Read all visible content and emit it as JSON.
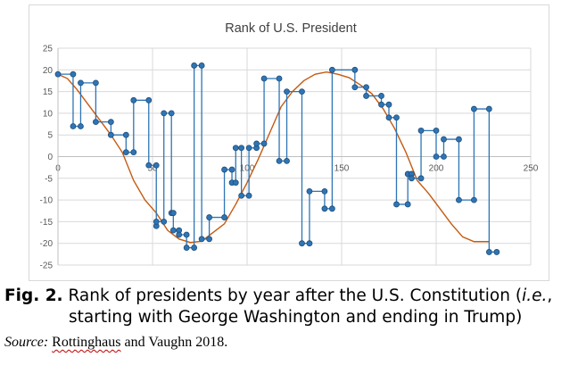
{
  "chart_data": {
    "type": "line",
    "title": "Rank of U.S. President",
    "xlabel": "",
    "ylabel": "",
    "xlim": [
      0,
      250
    ],
    "ylim": [
      -25,
      25
    ],
    "x_ticks": [
      0,
      50,
      100,
      150,
      200,
      250
    ],
    "y_ticks": [
      25,
      20,
      15,
      10,
      5,
      0,
      -5,
      -10,
      -15,
      -20,
      -25
    ],
    "grid": true,
    "colors": {
      "rank_series": "#2e75b6",
      "marker_fill": "#2e75b6",
      "marker_edge": "#1f4e79",
      "trend": "#c55a11",
      "grid": "#d9d9d9",
      "axis": "#bfbfbf"
    },
    "series": [
      {
        "values": [
          [
            0,
            19
          ],
          [
            8,
            19
          ],
          [
            8,
            7
          ],
          [
            12,
            7
          ],
          [
            12,
            17
          ],
          [
            20,
            17
          ],
          [
            20,
            8
          ],
          [
            28,
            8
          ],
          [
            28,
            5
          ],
          [
            36,
            5
          ],
          [
            36,
            1
          ],
          [
            40,
            1
          ],
          [
            40,
            13
          ],
          [
            48,
            13
          ],
          [
            48,
            -2
          ],
          [
            52,
            -2
          ],
          [
            52,
            -16
          ],
          [
            52,
            -15
          ],
          [
            56,
            -15
          ],
          [
            56,
            10
          ],
          [
            60,
            10
          ],
          [
            60,
            -13
          ],
          [
            61,
            -13
          ],
          [
            61,
            -17
          ],
          [
            64,
            -17
          ],
          [
            64,
            -18
          ],
          [
            68,
            -18
          ],
          [
            68,
            -21
          ],
          [
            72,
            -21
          ],
          [
            72,
            21
          ],
          [
            76,
            21
          ],
          [
            76,
            -19
          ],
          [
            80,
            -19
          ],
          [
            80,
            -14
          ],
          [
            88,
            -14
          ],
          [
            88,
            -3
          ],
          [
            92,
            -3
          ],
          [
            92,
            -6
          ],
          [
            94,
            -6
          ],
          [
            94,
            2
          ],
          [
            97,
            2
          ],
          [
            97,
            -9
          ],
          [
            101,
            -9
          ],
          [
            101,
            2
          ],
          [
            105,
            2
          ],
          [
            105,
            3
          ],
          [
            109,
            3
          ],
          [
            109,
            18
          ],
          [
            117,
            18
          ],
          [
            117,
            -1
          ],
          [
            121,
            -1
          ],
          [
            121,
            15
          ],
          [
            129,
            15
          ],
          [
            129,
            -20
          ],
          [
            133,
            -20
          ],
          [
            133,
            -8
          ],
          [
            141,
            -8
          ],
          [
            141,
            -12
          ],
          [
            145,
            -12
          ],
          [
            145,
            20
          ],
          [
            157,
            20
          ],
          [
            157,
            16
          ],
          [
            163,
            16
          ],
          [
            163,
            14
          ],
          [
            171,
            14
          ],
          [
            171,
            12
          ],
          [
            175,
            12
          ],
          [
            175,
            9
          ],
          [
            179,
            9
          ],
          [
            179,
            -11
          ],
          [
            185,
            -11
          ],
          [
            185,
            -4
          ],
          [
            187,
            -4
          ],
          [
            187,
            -5
          ],
          [
            192,
            -5
          ],
          [
            192,
            6
          ],
          [
            200,
            6
          ],
          [
            200,
            0
          ],
          [
            204,
            0
          ],
          [
            204,
            4
          ],
          [
            212,
            4
          ],
          [
            212,
            -10
          ],
          [
            220,
            -10
          ],
          [
            220,
            11
          ],
          [
            228,
            11
          ],
          [
            228,
            -22
          ],
          [
            232,
            -22
          ]
        ]
      },
      {
        "values": [
          [
            0,
            19
          ],
          [
            5,
            18
          ],
          [
            10,
            15.5
          ],
          [
            16,
            12
          ],
          [
            22,
            8.5
          ],
          [
            28,
            5
          ],
          [
            34,
            1
          ],
          [
            40,
            -5.5
          ],
          [
            46,
            -10
          ],
          [
            52,
            -13
          ],
          [
            58,
            -17
          ],
          [
            64,
            -19
          ],
          [
            70,
            -19.8
          ],
          [
            76,
            -19.5
          ],
          [
            82,
            -17.5
          ],
          [
            88,
            -15.5
          ],
          [
            94,
            -11
          ],
          [
            100,
            -6
          ],
          [
            106,
            -0.5
          ],
          [
            112,
            5.5
          ],
          [
            118,
            11.5
          ],
          [
            124,
            15
          ],
          [
            130,
            17.5
          ],
          [
            136,
            19
          ],
          [
            142,
            19.5
          ],
          [
            148,
            19
          ],
          [
            154,
            18.2
          ],
          [
            160,
            16.5
          ],
          [
            166,
            14.5
          ],
          [
            172,
            11
          ],
          [
            178,
            6.5
          ],
          [
            184,
            1
          ],
          [
            190,
            -5.5
          ],
          [
            196,
            -8.5
          ],
          [
            202,
            -12
          ],
          [
            208,
            -15.5
          ],
          [
            214,
            -18.5
          ],
          [
            220,
            -19.6
          ],
          [
            228,
            -19.6
          ]
        ]
      }
    ]
  },
  "caption": {
    "fig_label": "Fig. 2.",
    "line1_text": " Rank of presidents by year after the U.S. Constitution (",
    "ie": "i.e.",
    "line1_end": ",",
    "line2": "starting with George Washington and ending in Trump)"
  },
  "source": {
    "label": "Source:",
    "name": "Rottinghaus",
    "rest": " and Vaughn 2018."
  }
}
